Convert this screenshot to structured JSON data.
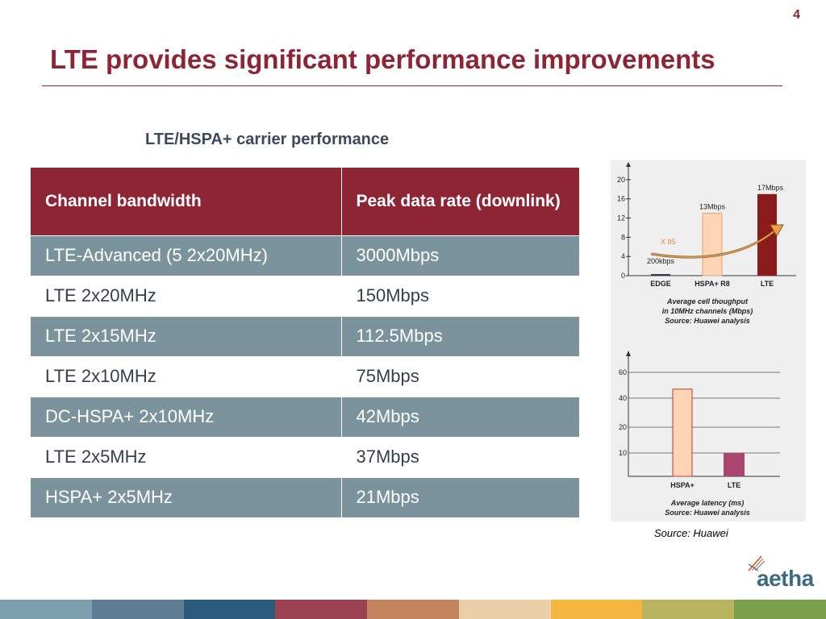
{
  "page_number": "4",
  "title": "LTE provides significant performance improvements",
  "table": {
    "caption": "LTE/HSPA+ carrier performance",
    "headers": [
      "Channel bandwidth",
      "Peak data rate (downlink)"
    ],
    "rows": [
      [
        "LTE-Advanced (5 2x20MHz)",
        "3000Mbps"
      ],
      [
        "LTE 2x20MHz",
        "150Mbps"
      ],
      [
        "LTE 2x15MHz",
        "112.5Mbps"
      ],
      [
        "LTE 2x10MHz",
        "75Mbps"
      ],
      [
        "DC-HSPA+ 2x10MHz",
        "42Mbps"
      ],
      [
        "LTE 2x5MHz",
        "37Mbps"
      ],
      [
        "HSPA+ 2x5MHz",
        "21Mbps"
      ]
    ]
  },
  "chart_data": [
    {
      "type": "bar",
      "categories": [
        "EDGE",
        "HSPA+ R8",
        "LTE"
      ],
      "values": [
        0.2,
        13,
        17
      ],
      "data_labels": [
        "200kbps",
        "13Mbps",
        "17Mbps"
      ],
      "yticks": [
        "0",
        "4",
        "8",
        "12",
        "16",
        "20"
      ],
      "ylim": [
        0,
        22
      ],
      "annotation": "X 85",
      "caption": [
        "Average cell thoughput",
        "in 10MHz channels (Mbps)",
        "Source: Huawei analysis"
      ],
      "colors": [
        "#2b3f5c",
        "#fbd5b4",
        "#8b1a1a"
      ]
    },
    {
      "type": "bar",
      "categories": [
        "HSPA+",
        "LTE"
      ],
      "values": [
        47,
        10
      ],
      "yticks": [
        "10",
        "20",
        "40",
        "60"
      ],
      "ylim": [
        0,
        70
      ],
      "caption": [
        "Average latency (ms)",
        "Source: Huawei analysis"
      ],
      "colors": [
        "#fbd5b4",
        "#a9456f"
      ]
    }
  ],
  "source_note": "Source: Huawei",
  "logo_text": "aetha",
  "footer_colors": [
    "#7c9eae",
    "#5e7d93",
    "#2b5b7c",
    "#9c4152",
    "#c4855e",
    "#ebcfa8",
    "#f4b63f",
    "#b9b460",
    "#7ba04c"
  ]
}
